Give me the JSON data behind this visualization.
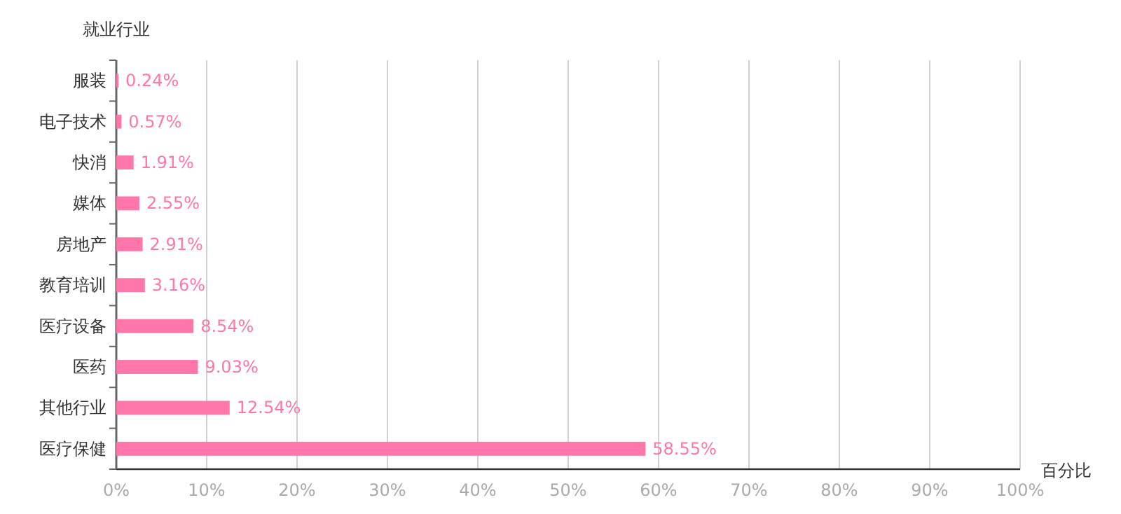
{
  "chart_data": {
    "type": "bar",
    "orientation": "horizontal",
    "xlabel": "百分比",
    "ylabel": "就业行业",
    "categories": [
      "服装",
      "电子技术",
      "快消",
      "媒体",
      "房地产",
      "教育培训",
      "医疗设备",
      "医药",
      "其他行业",
      "医疗保健"
    ],
    "values": [
      0.24,
      0.57,
      1.91,
      2.55,
      2.91,
      3.16,
      8.54,
      9.03,
      12.54,
      58.55
    ],
    "value_labels": [
      "0.24%",
      "0.57%",
      "1.91%",
      "2.55%",
      "2.91%",
      "3.16%",
      "8.54%",
      "9.03%",
      "12.54%",
      "58.55%"
    ],
    "color": "#ff77aa",
    "xlim": [
      0,
      100
    ],
    "xticks": [
      {
        "value": 0,
        "label": "0%"
      },
      {
        "value": 10,
        "label": "10%"
      },
      {
        "value": 20,
        "label": "20%"
      },
      {
        "value": 30,
        "label": "30%"
      },
      {
        "value": 40,
        "label": "40%"
      },
      {
        "value": 50,
        "label": "50%"
      },
      {
        "value": 60,
        "label": "60%"
      },
      {
        "value": 70,
        "label": "70%"
      },
      {
        "value": 80,
        "label": "80%"
      },
      {
        "value": 90,
        "label": "90%"
      },
      {
        "value": 100,
        "label": "100%"
      }
    ],
    "grid": "x"
  }
}
